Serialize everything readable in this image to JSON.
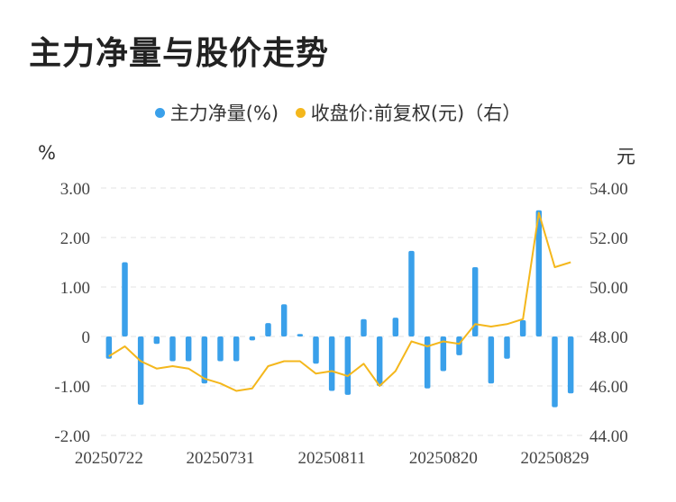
{
  "title": "主力净量与股价走势",
  "legend": {
    "series1": "主力净量(%)",
    "series2": "收盘价:前复权(元)（右）"
  },
  "units": {
    "left": "%",
    "right": "元"
  },
  "colors": {
    "bar": "#3aa0ea",
    "line": "#f4b71c",
    "grid": "#e3e3e3"
  },
  "chart_data": {
    "type": "bar",
    "x_ticks": [
      "20250722",
      "20250731",
      "20250811",
      "20250820",
      "20250829"
    ],
    "x_tick_index": [
      0,
      7,
      14,
      21,
      28
    ],
    "y_left_ticks": [
      "3.00",
      "2.00",
      "1.00",
      "0",
      "-1.00",
      "-2.00"
    ],
    "y_left_values": [
      3,
      2,
      1,
      0,
      -1,
      -2
    ],
    "y_right_ticks": [
      "54.00",
      "52.00",
      "50.00",
      "48.00",
      "46.00",
      "44.00"
    ],
    "y_right_values": [
      54,
      52,
      50,
      48,
      46,
      44
    ],
    "ylim_left": [
      -2,
      3
    ],
    "ylim_right": [
      44,
      54
    ],
    "series": [
      {
        "name": "主力净量(%)",
        "axis": "left",
        "values": [
          -0.45,
          1.5,
          -1.38,
          -0.15,
          -0.5,
          -0.5,
          -0.95,
          -0.5,
          -0.5,
          -0.08,
          0.27,
          0.65,
          0.05,
          -0.55,
          -1.1,
          -1.18,
          0.35,
          -1.0,
          0.38,
          1.73,
          -1.05,
          -0.7,
          -0.38,
          1.4,
          -0.95,
          -0.45,
          0.33,
          2.55,
          -1.43,
          -1.15
        ]
      },
      {
        "name": "收盘价:前复权(元)（右）",
        "axis": "right",
        "values": [
          47.2,
          47.6,
          47.0,
          46.7,
          46.8,
          46.7,
          46.3,
          46.1,
          45.8,
          45.9,
          46.8,
          47.0,
          47.0,
          46.5,
          46.6,
          46.4,
          46.9,
          46.0,
          46.6,
          47.8,
          47.6,
          47.8,
          47.7,
          48.5,
          48.4,
          48.5,
          48.7,
          53.0,
          50.8,
          51.0
        ]
      }
    ]
  }
}
